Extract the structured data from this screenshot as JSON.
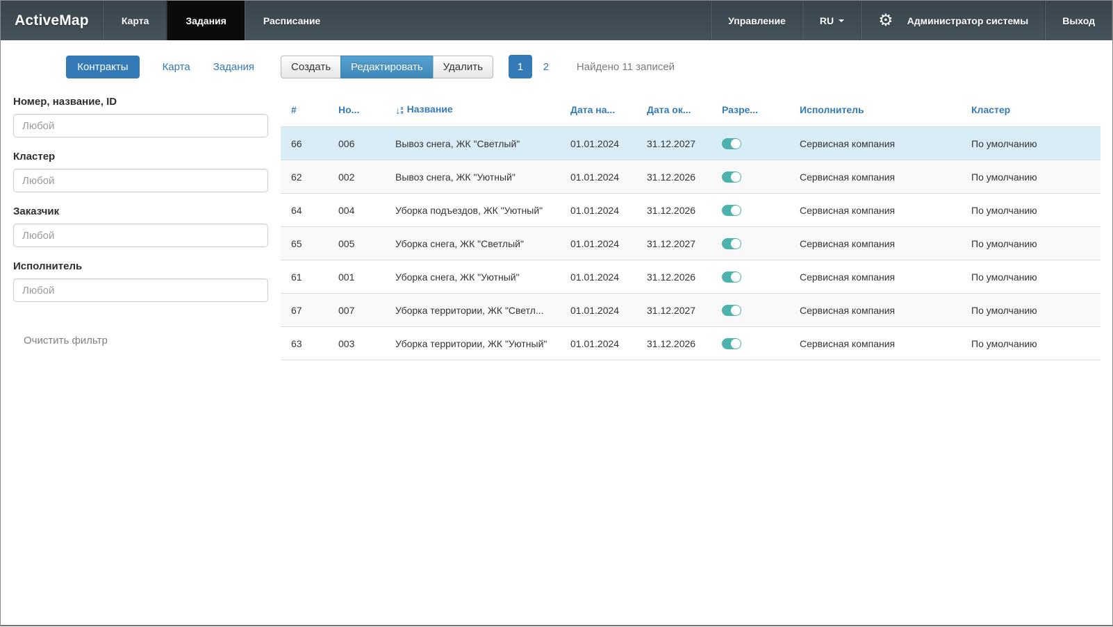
{
  "navbar": {
    "brand": "ActiveMap",
    "menu": [
      {
        "label": "Карта",
        "active": false
      },
      {
        "label": "Задания",
        "active": true
      },
      {
        "label": "Расписание",
        "active": false
      }
    ],
    "right": {
      "management": "Управление",
      "language": "RU",
      "settings_icon": "gear-icon",
      "user": "Администратор системы",
      "logout": "Выход"
    }
  },
  "sidebar": {
    "tabs": [
      {
        "label": "Контракты",
        "active": true
      },
      {
        "label": "Карта",
        "active": false
      },
      {
        "label": "Задания",
        "active": false
      }
    ],
    "filters": [
      {
        "label": "Номер, название, ID",
        "value": "",
        "placeholder": "Любой"
      },
      {
        "label": "Кластер",
        "value": "",
        "placeholder": "Любой"
      },
      {
        "label": "Заказчик",
        "value": "",
        "placeholder": "Любой"
      },
      {
        "label": "Исполнитель",
        "value": "",
        "placeholder": "Любой"
      }
    ],
    "clear_filter": "Очистить фильтр"
  },
  "toolbar": {
    "create_label": "Создать",
    "edit_label": "Редактировать",
    "delete_label": "Удалить",
    "active_page": "1",
    "next_page": "2",
    "results_text": "Найдено 11 записей"
  },
  "table": {
    "columns": [
      "#",
      "Но...",
      "Название",
      "Дата на...",
      "Дата ок...",
      "Разре...",
      "Исполнитель",
      "Кластер"
    ],
    "sorted_column": "Название",
    "rows": [
      {
        "id": "66",
        "number": "006",
        "name": "Вывоз снега, ЖК \"Светлый\"",
        "date_start": "01.01.2024",
        "date_end": "31.12.2027",
        "enabled": true,
        "executor": "Сервисная компания",
        "cluster": "По умолчанию",
        "selected": true
      },
      {
        "id": "62",
        "number": "002",
        "name": "Вывоз снега, ЖК \"Уютный\"",
        "date_start": "01.01.2024",
        "date_end": "31.12.2026",
        "enabled": true,
        "executor": "Сервисная компания",
        "cluster": "По умолчанию",
        "selected": false
      },
      {
        "id": "64",
        "number": "004",
        "name": "Уборка подъездов, ЖК \"Уютный\"",
        "date_start": "01.01.2024",
        "date_end": "31.12.2026",
        "enabled": true,
        "executor": "Сервисная компания",
        "cluster": "По умолчанию",
        "selected": false
      },
      {
        "id": "65",
        "number": "005",
        "name": "Уборка снега, ЖК \"Светлый\"",
        "date_start": "01.01.2024",
        "date_end": "31.12.2027",
        "enabled": true,
        "executor": "Сервисная компания",
        "cluster": "По умолчанию",
        "selected": false
      },
      {
        "id": "61",
        "number": "001",
        "name": "Уборка снега, ЖК \"Уютный\"",
        "date_start": "01.01.2024",
        "date_end": "31.12.2026",
        "enabled": true,
        "executor": "Сервисная компания",
        "cluster": "По умолчанию",
        "selected": false
      },
      {
        "id": "67",
        "number": "007",
        "name": "Уборка территории, ЖК \"Светл...",
        "date_start": "01.01.2024",
        "date_end": "31.12.2027",
        "enabled": true,
        "executor": "Сервисная компания",
        "cluster": "По умолчанию",
        "selected": false
      },
      {
        "id": "63",
        "number": "003",
        "name": "Уборка территории, ЖК \"Уютный\"",
        "date_start": "01.01.2024",
        "date_end": "31.12.2026",
        "enabled": true,
        "executor": "Сервисная компания",
        "cluster": "По умолчанию",
        "selected": false
      }
    ]
  },
  "colors": {
    "accent_blue": "#337ab7",
    "navbar_bg": "#404d56",
    "active_tab_bg": "#0b0b0b",
    "selected_row_bg": "#d9edf7",
    "toggle_on": "#4cb2aa",
    "muted_text": "#7b7b7b"
  }
}
